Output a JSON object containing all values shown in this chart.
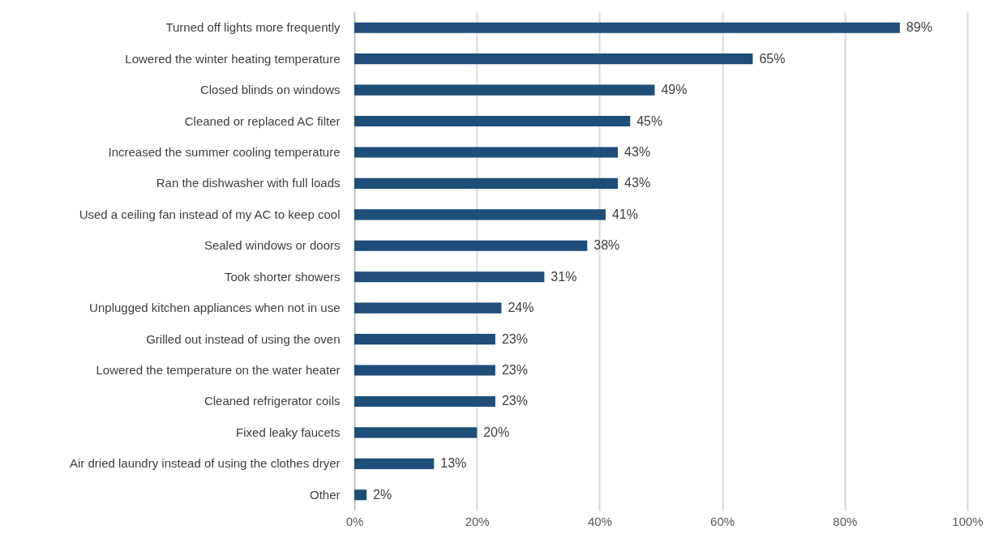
{
  "chart_data": {
    "type": "bar",
    "orientation": "horizontal",
    "categories": [
      "Turned off lights more frequently",
      "Lowered the winter heating temperature",
      "Closed blinds on windows",
      "Cleaned or replaced AC filter",
      "Increased the summer cooling temperature",
      "Ran the dishwasher with full loads",
      "Used a ceiling fan instead of my AC to keep cool",
      "Sealed windows or doors",
      "Took shorter showers",
      "Unplugged kitchen appliances when not in use",
      "Grilled out  instead of using the oven",
      "Lowered the temperature on the water heater",
      "Cleaned refrigerator coils",
      "Fixed leaky faucets",
      "Air dried laundry instead of using the clothes dryer",
      "Other"
    ],
    "values": [
      89,
      65,
      49,
      45,
      43,
      43,
      41,
      38,
      31,
      24,
      23,
      23,
      23,
      20,
      13,
      2
    ],
    "value_labels": [
      "89%",
      "65%",
      "49%",
      "45%",
      "43%",
      "43%",
      "41%",
      "38%",
      "31%",
      "24%",
      "23%",
      "23%",
      "23%",
      "20%",
      "13%",
      "2%"
    ],
    "color": "#1f4e79",
    "xlim": [
      0,
      100
    ],
    "xticks": [
      {
        "value": 0,
        "label": "0%"
      },
      {
        "value": 20,
        "label": "20%"
      },
      {
        "value": 40,
        "label": "40%"
      },
      {
        "value": 60,
        "label": "60%"
      },
      {
        "value": 80,
        "label": "80%"
      },
      {
        "value": 100,
        "label": "100%"
      }
    ],
    "grid": "x"
  }
}
